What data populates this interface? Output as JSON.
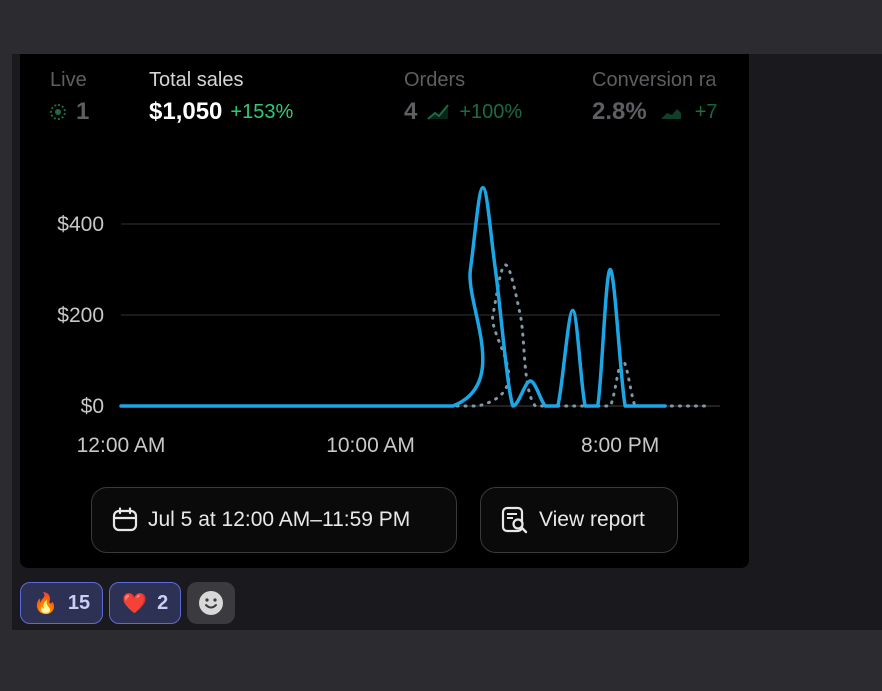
{
  "metrics": {
    "live": {
      "label": "Live",
      "value": "1"
    },
    "sales": {
      "label": "Total sales",
      "value": "$1,050",
      "change": "+153%"
    },
    "orders": {
      "label": "Orders",
      "value": "4",
      "change": "+100%"
    },
    "conversion": {
      "label": "Conversion ra",
      "value": "2.8%",
      "change": "+7"
    }
  },
  "chart_data": {
    "type": "line",
    "y_ticks": [
      "$400",
      "$200",
      "$0"
    ],
    "x_ticks": [
      "12:00 AM",
      "10:00 AM",
      "8:00 PM"
    ],
    "ylim": [
      0,
      500
    ],
    "xlim": [
      0,
      24
    ],
    "grid": true,
    "series": [
      {
        "style": "solid",
        "color": "#1ba6e5",
        "x": [
          0,
          13.3,
          14.0,
          14.5,
          15.0,
          15.7,
          16.4,
          17.0,
          17.5,
          18.1,
          18.6,
          19.1,
          19.6,
          20.2,
          20.7,
          21.2,
          21.8
        ],
        "y": [
          0,
          0,
          300,
          480,
          300,
          0,
          55,
          0,
          0,
          210,
          0,
          0,
          300,
          0,
          0,
          0,
          0
        ]
      },
      {
        "style": "dotted",
        "color": "#7e9aa6",
        "x": [
          0,
          14.3,
          14.9,
          15.4,
          16.0,
          16.6,
          19.0,
          19.6,
          20.1,
          20.6,
          21.0,
          23.5
        ],
        "y": [
          0,
          0,
          200,
          310,
          200,
          0,
          0,
          0,
          100,
          0,
          0,
          0
        ]
      }
    ]
  },
  "buttons": {
    "date_range": "Jul 5 at 12:00 AM–11:59 PM",
    "view_report": "View report"
  },
  "reactions": [
    {
      "emoji": "🔥",
      "count": "15"
    },
    {
      "emoji": "❤️",
      "count": "2"
    }
  ],
  "colors": {
    "accent": "#1ba6e5",
    "positive": "#2ecc71",
    "card_bg": "#000000"
  }
}
